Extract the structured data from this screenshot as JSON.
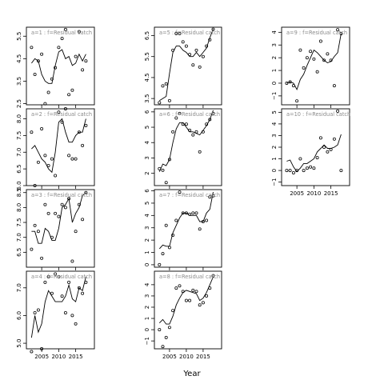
{
  "figure": {
    "xlabel": "Year",
    "xlim": [
      2000.5,
      2020.5
    ],
    "xticks": [
      2005,
      2010,
      2015
    ]
  },
  "chart_data": [
    {
      "type": "scatter",
      "title": "a=1 : f=Residual catch",
      "ylim": [
        2.45,
        5.9
      ],
      "yticks": [
        2.5,
        3.5,
        4.5,
        5.5
      ],
      "ytick_labels": [
        "2.5",
        "3.5",
        "4.5",
        "5.5"
      ],
      "x": [
        2002,
        2003,
        2004,
        2005,
        2006,
        2007,
        2008,
        2009,
        2010,
        2011,
        2012,
        2013,
        2014,
        2015,
        2016,
        2017,
        2018
      ],
      "points": [
        5.0,
        3.8,
        4.4,
        4.7,
        2.5,
        3.0,
        3.6,
        4.1,
        5.0,
        5.4,
        5.8,
        2.9,
        3.1,
        4.6,
        5.7,
        4.0,
        4.4
      ],
      "fit": [
        4.3,
        4.5,
        4.4,
        3.8,
        3.5,
        3.4,
        3.4,
        4.2,
        4.8,
        4.9,
        4.5,
        4.6,
        4.2,
        4.3,
        4.7,
        4.4,
        4.7
      ]
    },
    {
      "type": "scatter",
      "title": "a=2 : f=Residual catch",
      "ylim": [
        6.0,
        8.3
      ],
      "yticks": [
        6.0,
        6.5,
        7.0,
        7.5,
        8.0
      ],
      "ytick_labels": [
        "6.0",
        "6.5",
        "7.0",
        "7.5",
        "8.0"
      ],
      "x": [
        2002,
        2003,
        2004,
        2005,
        2006,
        2007,
        2008,
        2009,
        2010,
        2011,
        2012,
        2013,
        2014,
        2015,
        2016,
        2017,
        2018
      ],
      "points": [
        7.6,
        6.0,
        6.7,
        7.7,
        6.9,
        6.6,
        6.8,
        6.3,
        8.2,
        7.9,
        8.3,
        6.9,
        6.8,
        6.8,
        7.6,
        7.2,
        7.8
      ],
      "fit": [
        7.1,
        7.2,
        7.0,
        6.8,
        6.7,
        6.5,
        6.4,
        7.0,
        7.9,
        8.0,
        7.6,
        7.3,
        7.3,
        7.5,
        7.6,
        7.6,
        8.0
      ]
    },
    {
      "type": "scatter",
      "title": "a=3 : f=Residual catch",
      "ylim": [
        6.0,
        8.6
      ],
      "yticks": [
        6.5,
        7.0,
        7.5,
        8.0,
        8.5
      ],
      "ytick_labels": [
        "6.5",
        "7.0",
        "7.5",
        "8.0",
        "8.5"
      ],
      "x": [
        2002,
        2003,
        2004,
        2005,
        2006,
        2007,
        2008,
        2009,
        2010,
        2011,
        2012,
        2013,
        2014,
        2015,
        2016,
        2017,
        2018
      ],
      "points": [
        6.6,
        7.4,
        7.2,
        6.3,
        8.1,
        7.8,
        7.0,
        7.8,
        7.7,
        8.1,
        8.0,
        8.3,
        6.2,
        7.2,
        8.1,
        7.6,
        8.5
      ],
      "fit": [
        7.2,
        7.2,
        6.8,
        6.8,
        7.3,
        7.2,
        6.9,
        6.9,
        7.3,
        8.0,
        8.1,
        8.3,
        7.5,
        7.8,
        8.0,
        8.4,
        8.5
      ]
    },
    {
      "type": "scatter",
      "title": "a=4 : f=Residual catch",
      "ylim": [
        4.8,
        7.6
      ],
      "yticks": [
        5.0,
        6.0,
        7.0
      ],
      "ytick_labels": [
        "5.0",
        "6.0",
        "7.0"
      ],
      "x": [
        2002,
        2003,
        2004,
        2005,
        2006,
        2007,
        2008,
        2009,
        2010,
        2011,
        2012,
        2013,
        2014,
        2015,
        2016,
        2017,
        2018
      ],
      "points": [
        4.7,
        6.1,
        6.2,
        4.8,
        7.2,
        7.4,
        6.8,
        7.5,
        7.4,
        6.7,
        6.1,
        7.2,
        6.0,
        5.7,
        7.0,
        6.8,
        7.2
      ],
      "fit": [
        5.2,
        6.0,
        5.4,
        5.7,
        6.5,
        6.9,
        6.7,
        6.5,
        6.5,
        6.5,
        6.7,
        7.1,
        6.6,
        6.5,
        7.0,
        6.9,
        7.4
      ]
    },
    {
      "type": "scatter",
      "title": "a=5 : f=Residual catch",
      "ylim": [
        3.2,
        6.9
      ],
      "yticks": [
        3.5,
        4.5,
        5.5,
        6.5
      ],
      "ytick_labels": [
        "3.5",
        "4.5",
        "5.5",
        "6.5"
      ],
      "x": [
        2002,
        2003,
        2004,
        2005,
        2006,
        2007,
        2008,
        2009,
        2010,
        2011,
        2012,
        2013,
        2014,
        2015,
        2016,
        2017,
        2018
      ],
      "points": [
        3.3,
        4.1,
        4.2,
        3.4,
        5.8,
        6.6,
        6.6,
        6.2,
        6.0,
        5.6,
        5.1,
        5.8,
        5.0,
        5.5,
        6.0,
        6.3,
        6.8
      ],
      "fit": [
        3.4,
        3.5,
        3.6,
        4.7,
        5.7,
        6.0,
        6.0,
        5.8,
        5.7,
        5.5,
        5.5,
        5.7,
        5.5,
        5.7,
        5.9,
        6.4,
        6.8
      ]
    },
    {
      "type": "scatter",
      "title": "a=6 : f=Residual catch",
      "ylim": [
        1.2,
        6.2
      ],
      "yticks": [
        2,
        3,
        4,
        5,
        6
      ],
      "ytick_labels": [
        "2",
        "3",
        "4",
        "5",
        "6"
      ],
      "x": [
        2002,
        2003,
        2004,
        2005,
        2006,
        2007,
        2008,
        2009,
        2010,
        2011,
        2012,
        2013,
        2014,
        2015,
        2016,
        2017,
        2018
      ],
      "points": [
        2.3,
        2.2,
        1.4,
        2.9,
        4.7,
        5.6,
        5.9,
        5.2,
        5.2,
        4.8,
        4.5,
        4.7,
        3.4,
        4.7,
        5.2,
        5.5,
        5.9
      ],
      "fit": [
        2.1,
        2.6,
        2.5,
        2.9,
        4.0,
        4.9,
        5.3,
        5.3,
        5.0,
        4.7,
        4.7,
        4.6,
        4.5,
        4.8,
        5.1,
        5.5,
        6.1
      ]
    },
    {
      "type": "scatter",
      "title": "a=7 : f=Residual catch",
      "ylim": [
        -0.2,
        6.1
      ],
      "yticks": [
        0,
        1,
        2,
        3,
        4,
        5,
        6
      ],
      "ytick_labels": [
        "0",
        "1",
        "2",
        "3",
        "4",
        "5",
        "6"
      ],
      "x": [
        2002,
        2003,
        2004,
        2005,
        2006,
        2007,
        2008,
        2009,
        2010,
        2011,
        2012,
        2013,
        2014,
        2015,
        2016,
        2017,
        2018
      ],
      "points": [
        0.0,
        0.9,
        3.2,
        1.4,
        2.4,
        3.6,
        5.9,
        4.2,
        4.2,
        4.1,
        4.2,
        4.2,
        2.9,
        3.5,
        3.6,
        5.5,
        5.6
      ],
      "fit": [
        1.3,
        1.6,
        1.5,
        1.5,
        2.6,
        3.2,
        3.8,
        4.2,
        4.2,
        4.0,
        4.0,
        4.0,
        3.5,
        3.5,
        4.2,
        4.5,
        5.9
      ]
    },
    {
      "type": "scatter",
      "title": "a=8 : f=Residual catch",
      "ylim": [
        -1.7,
        5.2
      ],
      "yticks": [
        -1,
        0,
        1,
        2,
        3,
        4
      ],
      "ytick_labels": [
        "−1",
        "0",
        "1",
        "2",
        "3",
        "4"
      ],
      "x": [
        2002,
        2003,
        2004,
        2005,
        2006,
        2007,
        2008,
        2009,
        2010,
        2011,
        2012,
        2013,
        2014,
        2015,
        2016,
        2017,
        2018
      ],
      "points": [
        0.0,
        -1.5,
        -0.7,
        0.2,
        1.7,
        3.7,
        3.9,
        3.4,
        2.6,
        2.6,
        3.5,
        3.4,
        2.2,
        2.4,
        3.0,
        3.7,
        4.8
      ],
      "fit": [
        0.6,
        0.9,
        0.5,
        0.5,
        1.2,
        2.2,
        2.8,
        3.3,
        3.5,
        3.4,
        3.3,
        3.2,
        2.6,
        2.8,
        3.3,
        4.0,
        4.7
      ]
    },
    {
      "type": "scatter",
      "title": "a=9 : f=Residual catch",
      "ylim": [
        -1.7,
        4.4
      ],
      "yticks": [
        -1,
        0,
        1,
        2,
        3,
        4
      ],
      "ytick_labels": [
        "−1",
        "0",
        "1",
        "2",
        "3",
        "4"
      ],
      "x": [
        2002,
        2003,
        2004,
        2005,
        2006,
        2007,
        2008,
        2009,
        2010,
        2011,
        2012,
        2013,
        2014,
        2015,
        2016,
        2017,
        2018
      ],
      "points": [
        0.0,
        0.1,
        -0.2,
        -1.4,
        2.6,
        1.2,
        2.0,
        2.5,
        1.9,
        0.9,
        3.3,
        1.8,
        2.3,
        1.8,
        -0.2,
        4.2,
        3.9
      ],
      "fit": [
        0.0,
        0.1,
        0.0,
        -0.5,
        0.3,
        0.7,
        1.4,
        2.0,
        2.6,
        2.4,
        2.1,
        1.8,
        1.6,
        1.7,
        2.1,
        2.4,
        3.9
      ]
    },
    {
      "type": "scatter",
      "title": "a=10 : f=Residual catch",
      "ylim": [
        -1.3,
        5.3
      ],
      "yticks": [
        -1,
        0,
        1,
        2,
        3,
        4,
        5
      ],
      "ytick_labels": [
        "−1",
        "0",
        "1",
        "2",
        "3",
        "4",
        "5"
      ],
      "x": [
        2002,
        2003,
        2004,
        2005,
        2006,
        2007,
        2008,
        2009,
        2010,
        2011,
        2012,
        2013,
        2014,
        2015,
        2016,
        2017,
        2018
      ],
      "points": [
        0.0,
        0.0,
        -0.2,
        0.0,
        1.0,
        0.0,
        0.2,
        0.3,
        0.2,
        1.1,
        2.8,
        2.0,
        1.6,
        1.8,
        2.7,
        5.1,
        0.0
      ],
      "fit": [
        0.8,
        0.9,
        0.3,
        -0.1,
        0.2,
        0.6,
        0.6,
        0.8,
        1.0,
        1.6,
        1.9,
        2.2,
        1.9,
        1.9,
        2.0,
        2.2,
        3.1
      ]
    }
  ]
}
